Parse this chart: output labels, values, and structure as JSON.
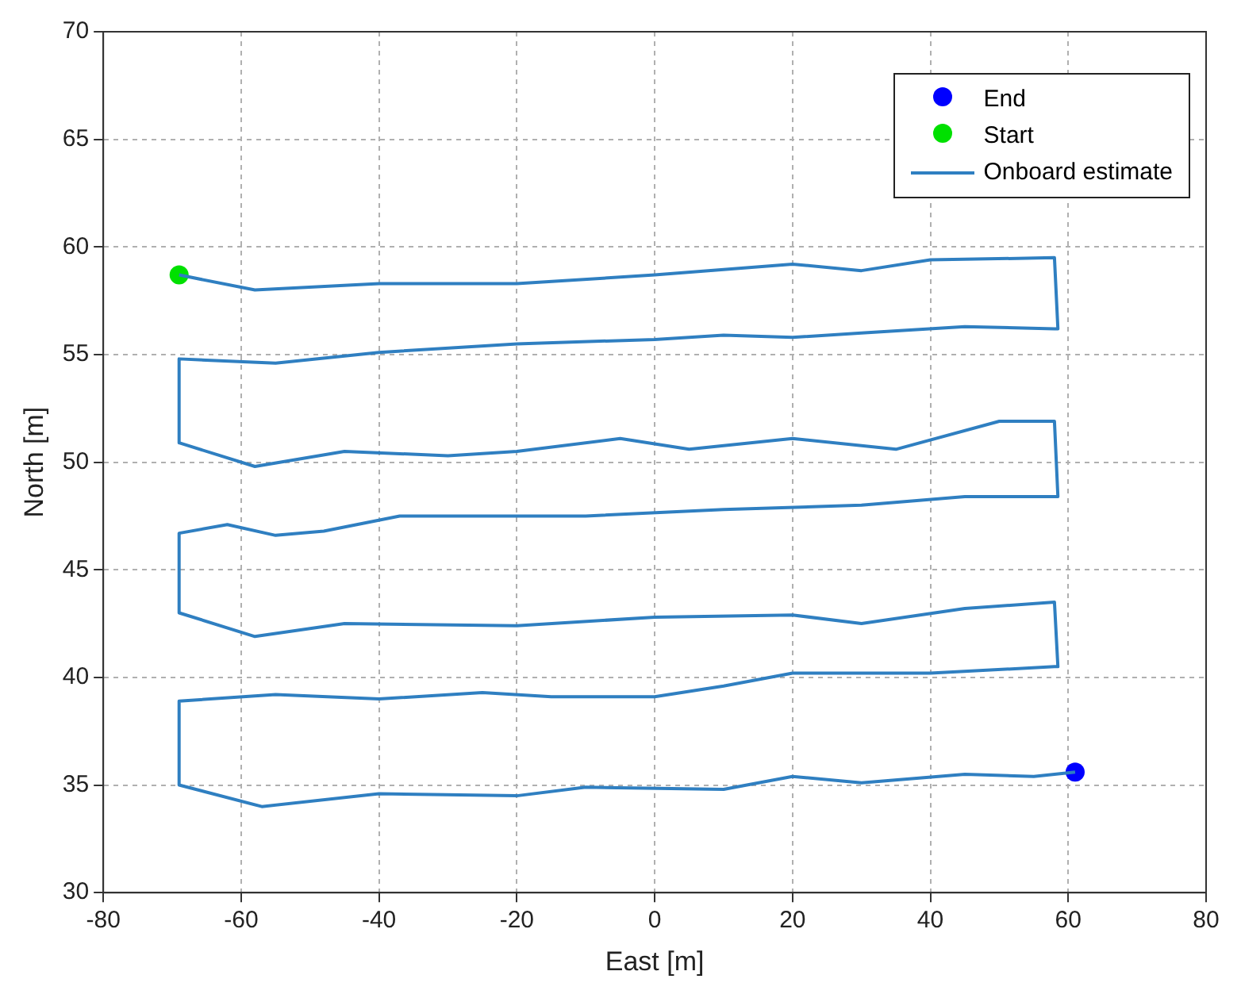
{
  "chart_data": {
    "type": "line",
    "xlabel": "East [m]",
    "ylabel": "North [m]",
    "xlim": [
      -80,
      80
    ],
    "xticks": [
      -80,
      -60,
      -40,
      -20,
      0,
      20,
      40,
      60,
      80
    ],
    "ylim": [
      30,
      70
    ],
    "yticks": [
      30,
      35,
      40,
      45,
      50,
      55,
      60,
      65,
      70
    ],
    "grid": true,
    "legend": "top right",
    "series": [
      {
        "name": "End",
        "type": "scatter",
        "marker": "circle",
        "color": "#0000ff",
        "x": [
          61
        ],
        "values": [
          35.6
        ]
      },
      {
        "name": "Start",
        "type": "scatter",
        "marker": "circle",
        "color": "#00e000",
        "x": [
          -69
        ],
        "values": [
          58.7
        ]
      },
      {
        "name": "Onboard estimate",
        "type": "line",
        "color": "#2f7fc1",
        "marker": "none",
        "line_style": "solid",
        "x": [
          -69,
          -58,
          -40,
          -20,
          0,
          20,
          30,
          40,
          58,
          58.5,
          58,
          45,
          30,
          20,
          10,
          0,
          -20,
          -40,
          -55,
          -69,
          -69,
          -58,
          -45,
          -30,
          -20,
          -5,
          5,
          20,
          35,
          50,
          58,
          58.5,
          58,
          45,
          30,
          10,
          -10,
          -28,
          -37,
          -48,
          -55,
          -62,
          -69,
          -69,
          -58,
          -45,
          -20,
          0,
          20,
          30,
          45,
          58,
          58.5,
          58,
          40,
          20,
          10,
          0,
          -15,
          -25,
          -40,
          -55,
          -69,
          -69,
          -57,
          -40,
          -20,
          -10,
          10,
          20,
          30,
          45,
          55,
          61
        ],
        "values": [
          58.7,
          58.0,
          58.3,
          58.3,
          58.7,
          59.2,
          58.9,
          59.4,
          59.5,
          56.2,
          56.2,
          56.3,
          56.0,
          55.8,
          55.9,
          55.7,
          55.5,
          55.1,
          54.6,
          54.8,
          50.9,
          49.8,
          50.5,
          50.3,
          50.5,
          51.1,
          50.6,
          51.1,
          50.6,
          51.9,
          51.9,
          48.4,
          48.4,
          48.4,
          48.0,
          47.8,
          47.5,
          47.5,
          47.5,
          46.8,
          46.6,
          47.1,
          46.7,
          43.0,
          41.9,
          42.5,
          42.4,
          42.8,
          42.9,
          42.5,
          43.2,
          43.5,
          40.5,
          40.5,
          40.2,
          40.2,
          39.6,
          39.1,
          39.1,
          39.3,
          39.0,
          39.2,
          38.9,
          35.0,
          34.0,
          34.6,
          34.5,
          34.9,
          34.8,
          35.4,
          35.1,
          35.5,
          35.4,
          35.6
        ]
      }
    ]
  }
}
